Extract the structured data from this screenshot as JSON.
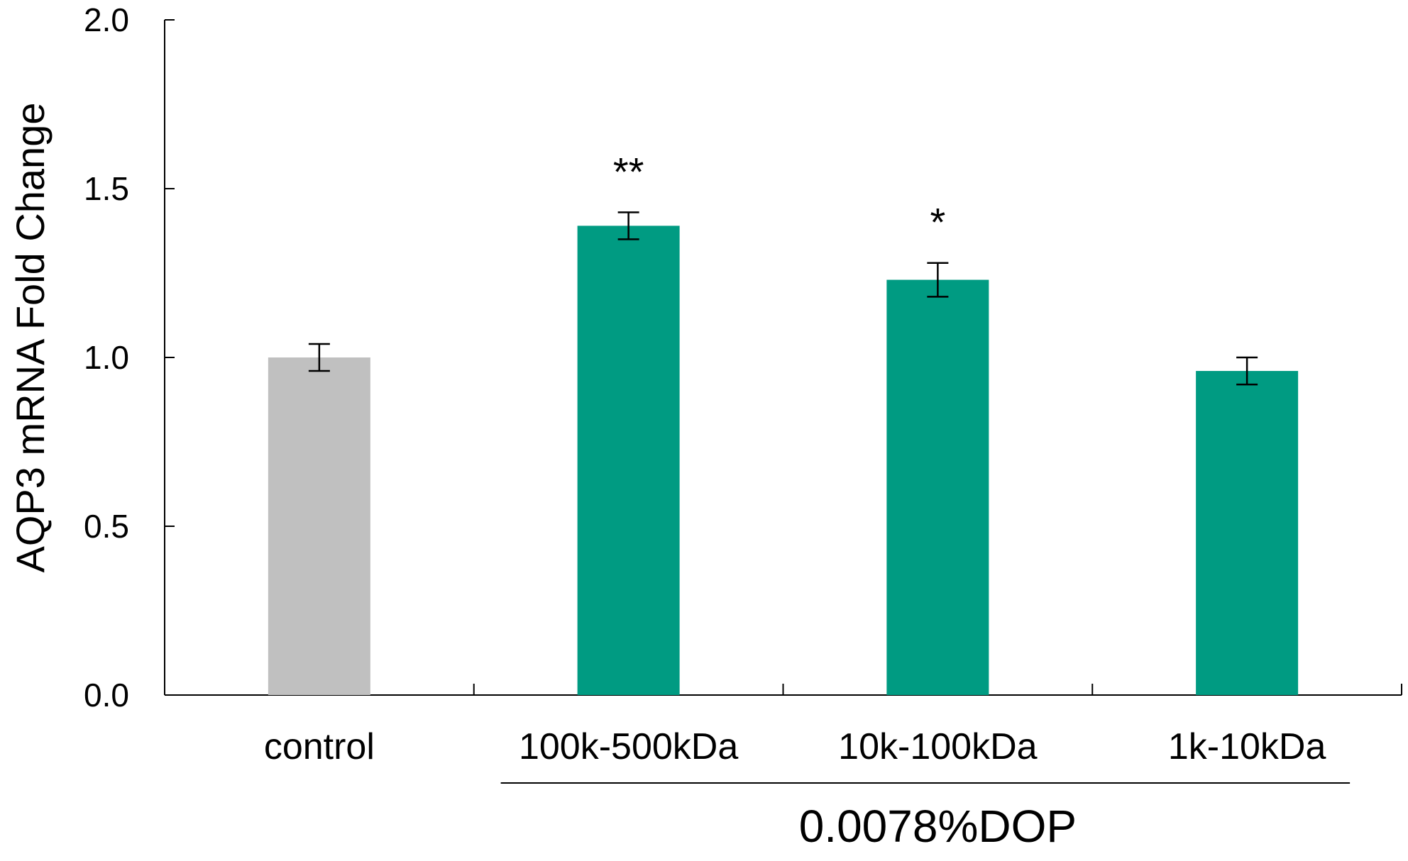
{
  "chart_data": {
    "type": "bar",
    "title": "",
    "xlabel": "",
    "ylabel": "AQP3 mRNA Fold Change",
    "ylim": [
      0,
      2.0
    ],
    "yticks": [
      "0.0",
      "0.5",
      "1.0",
      "1.5",
      "2.0"
    ],
    "categories": [
      "control",
      "100k-500kDa",
      "10k-100kDa",
      "1k-10kDa"
    ],
    "values": [
      1.0,
      1.39,
      1.23,
      0.96
    ],
    "errors": [
      0.04,
      0.04,
      0.05,
      0.04
    ],
    "significance": [
      "",
      "**",
      "*",
      ""
    ],
    "colors": [
      "#c0c0c0",
      "#009b82",
      "#009b82",
      "#009b82"
    ],
    "group_label": "0.0078%DOP",
    "grid": false
  }
}
